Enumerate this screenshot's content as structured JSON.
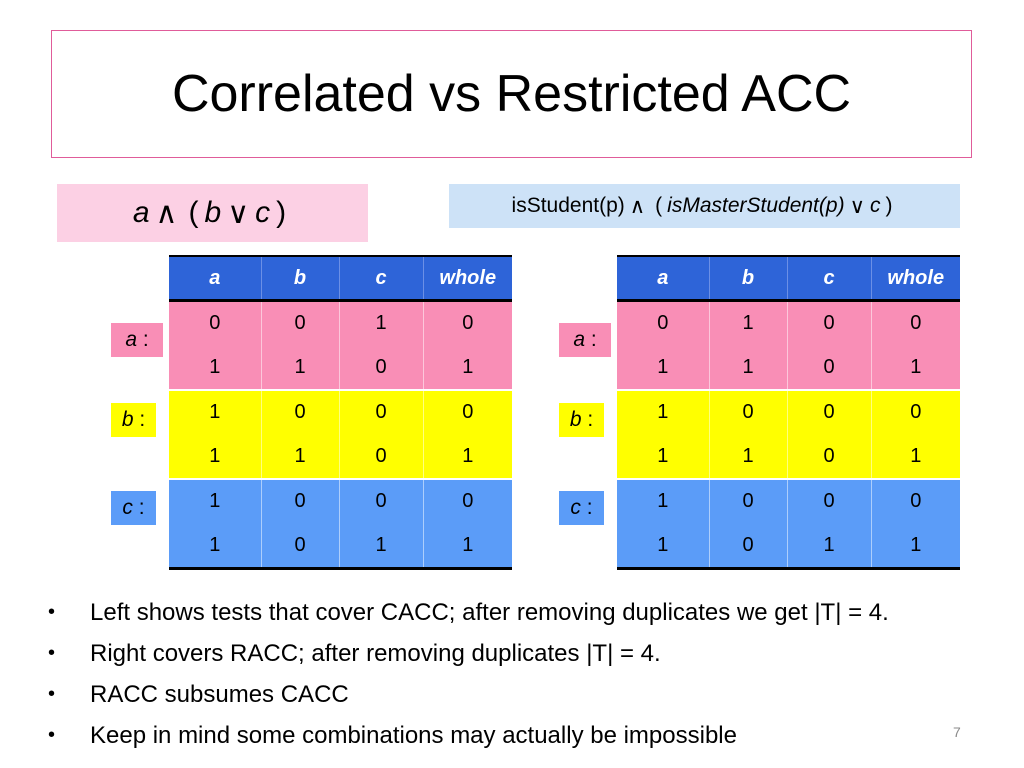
{
  "title": "Correlated vs Restricted ACC",
  "left_formula": {
    "a": "a",
    "and": "∧",
    "open": "(",
    "b": "b",
    "or": "∨",
    "c": "c",
    "close": ")"
  },
  "right_formula": {
    "pre": "isStudent(p)",
    "and": "∧",
    "open": "(",
    "master": "isMasterStudent(p)",
    "or": "∨",
    "c": "c",
    "close": ")"
  },
  "table_headers": [
    "a",
    "b",
    "c",
    "whole"
  ],
  "left_table": [
    [
      "0",
      "0",
      "1",
      "0"
    ],
    [
      "1",
      "1",
      "0",
      "1"
    ],
    [
      "1",
      "0",
      "0",
      "0"
    ],
    [
      "1",
      "1",
      "0",
      "1"
    ],
    [
      "1",
      "0",
      "0",
      "0"
    ],
    [
      "1",
      "0",
      "1",
      "1"
    ]
  ],
  "right_table": [
    [
      "0",
      "1",
      "0",
      "0"
    ],
    [
      "1",
      "1",
      "0",
      "1"
    ],
    [
      "1",
      "0",
      "0",
      "0"
    ],
    [
      "1",
      "1",
      "0",
      "1"
    ],
    [
      "1",
      "0",
      "0",
      "0"
    ],
    [
      "1",
      "0",
      "1",
      "1"
    ]
  ],
  "row_labels": [
    {
      "var": "a",
      "colon": ":"
    },
    {
      "var": "b",
      "colon": ":"
    },
    {
      "var": "c",
      "colon": ":"
    }
  ],
  "bullets": [
    "Left shows tests that cover CACC; after removing duplicates we get |T| = 4.",
    "Right covers RACC; after removing duplicates |T| = 4.",
    "RACC subsumes CACC",
    "Keep in mind some combinations may actually be impossible"
  ],
  "bullet_symbol": "•",
  "page_number": "7",
  "colors": {
    "title_border": "#e05c9a",
    "header_blue": "#2e64d8",
    "pink": "#f98eb6",
    "yellow": "#ffff00",
    "blue": "#5b9cf8",
    "formula_left_bg": "#fcd0e4",
    "formula_right_bg": "#cde2f7"
  }
}
